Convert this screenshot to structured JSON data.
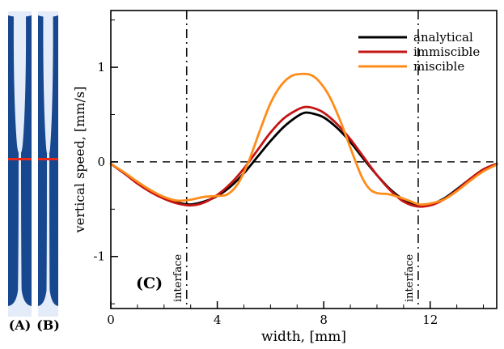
{
  "figure": {
    "panel_a_label": "(A)",
    "panel_b_label": "(B)",
    "panel_c_label": "(C)"
  },
  "panels": {
    "bg_color": "#17478f",
    "fluid_color": "#e3ecf8",
    "interface_color": "#e8291c"
  },
  "chart_data": {
    "type": "line",
    "title": "",
    "xlabel": "width, [mm]",
    "ylabel": "vertical speed, [mm/s]",
    "xlim": [
      0,
      14.5
    ],
    "ylim": [
      -1.55,
      1.6
    ],
    "x_major_ticks": [
      0,
      4,
      8,
      12
    ],
    "x_minor_step": 1,
    "y_major_ticks": [
      -1,
      0,
      1
    ],
    "y_minor_step": 0.5,
    "grid": false,
    "zero_line": true,
    "legend_position": "top-right",
    "interfaces": {
      "positions": [
        2.85,
        11.55
      ],
      "label": "interface"
    },
    "series": [
      {
        "name": "analytical",
        "color": "#000000",
        "x": [
          0,
          0.5,
          1,
          1.5,
          2,
          2.5,
          3,
          3.5,
          4,
          4.5,
          5,
          5.5,
          6,
          6.5,
          7,
          7.3,
          7.6,
          8,
          8.5,
          9,
          9.5,
          10,
          10.5,
          11,
          11.5,
          12,
          12.5,
          13,
          13.5,
          14,
          14.5
        ],
        "y": [
          -0.02,
          -0.12,
          -0.22,
          -0.31,
          -0.38,
          -0.43,
          -0.45,
          -0.42,
          -0.36,
          -0.26,
          -0.12,
          0.05,
          0.22,
          0.37,
          0.48,
          0.52,
          0.51,
          0.47,
          0.36,
          0.21,
          0.03,
          -0.14,
          -0.29,
          -0.4,
          -0.46,
          -0.45,
          -0.39,
          -0.29,
          -0.18,
          -0.08,
          -0.02
        ]
      },
      {
        "name": "immiscible",
        "color": "#c41414",
        "x": [
          0,
          0.5,
          1,
          1.5,
          2,
          2.5,
          3,
          3.5,
          4,
          4.5,
          5,
          5.5,
          6,
          6.5,
          7,
          7.3,
          7.6,
          8,
          8.5,
          9,
          9.5,
          10,
          10.5,
          11,
          11.5,
          12,
          12.5,
          13,
          13.5,
          14,
          14.5
        ],
        "y": [
          -0.02,
          -0.12,
          -0.23,
          -0.32,
          -0.39,
          -0.44,
          -0.46,
          -0.43,
          -0.35,
          -0.23,
          -0.07,
          0.12,
          0.31,
          0.46,
          0.55,
          0.58,
          0.57,
          0.52,
          0.4,
          0.24,
          0.05,
          -0.14,
          -0.3,
          -0.42,
          -0.47,
          -0.46,
          -0.4,
          -0.3,
          -0.18,
          -0.08,
          -0.02
        ]
      },
      {
        "name": "miscible",
        "color": "#ff8c1a",
        "x": [
          0,
          0.5,
          1,
          1.5,
          2,
          2.5,
          3,
          3.5,
          4,
          4.4,
          4.8,
          5.2,
          5.6,
          6,
          6.4,
          6.8,
          7.2,
          7.5,
          7.8,
          8.2,
          8.6,
          9,
          9.4,
          9.7,
          10,
          10.4,
          10.8,
          11.2,
          11.6,
          12,
          12.5,
          13,
          13.5,
          14,
          14.5
        ],
        "y": [
          -0.02,
          -0.11,
          -0.21,
          -0.3,
          -0.37,
          -0.41,
          -0.4,
          -0.37,
          -0.36,
          -0.34,
          -0.22,
          0.02,
          0.33,
          0.62,
          0.81,
          0.91,
          0.93,
          0.92,
          0.86,
          0.7,
          0.45,
          0.15,
          -0.14,
          -0.28,
          -0.33,
          -0.34,
          -0.37,
          -0.41,
          -0.45,
          -0.44,
          -0.4,
          -0.31,
          -0.2,
          -0.1,
          -0.03
        ]
      }
    ]
  }
}
